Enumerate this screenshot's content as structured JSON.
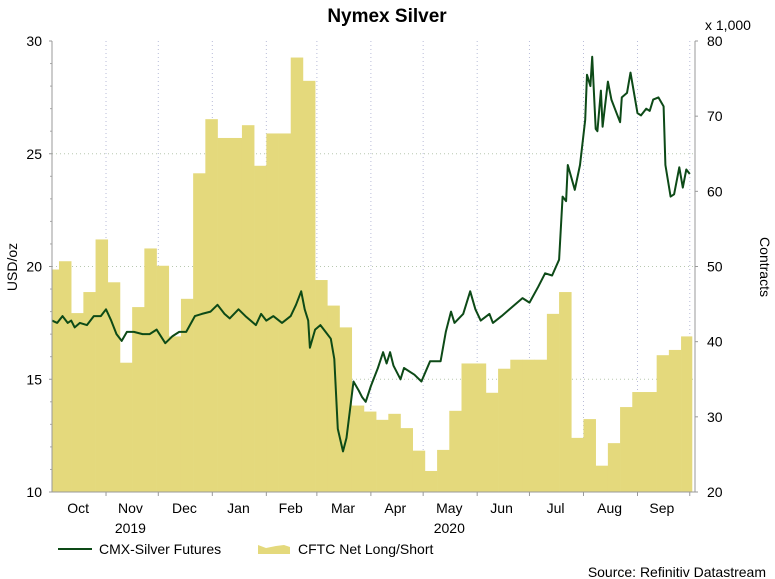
{
  "chart_data": {
    "type": "line+area",
    "title": "Nymex Silver",
    "ylabel_left": "USD/oz",
    "ylabel_right": "Contracts",
    "right_multiplier": "x 1,000",
    "source": "Source: Refinitiv Datastream",
    "xlim": [
      "2019-10-01",
      "2020-10-04"
    ],
    "ylim_left": [
      10,
      30
    ],
    "ylim_right": [
      20,
      80
    ],
    "yticks_left": [
      "10",
      "15",
      "20",
      "25",
      "30"
    ],
    "yticks_right": [
      "20",
      "30",
      "40",
      "50",
      "60",
      "70",
      "80"
    ],
    "grid": true,
    "months": [
      {
        "label": "Oct",
        "date": "2019-10-16"
      },
      {
        "label": "Nov",
        "date": "2019-11-15"
      },
      {
        "label": "Dec",
        "date": "2019-12-16"
      },
      {
        "label": "Jan",
        "date": "2020-01-16"
      },
      {
        "label": "Feb",
        "date": "2020-02-15"
      },
      {
        "label": "Mar",
        "date": "2020-03-16"
      },
      {
        "label": "Apr",
        "date": "2020-04-15"
      },
      {
        "label": "May",
        "date": "2020-05-16"
      },
      {
        "label": "Jun",
        "date": "2020-06-15"
      },
      {
        "label": "Jul",
        "date": "2020-07-16"
      },
      {
        "label": "Aug",
        "date": "2020-08-16"
      },
      {
        "label": "Sep",
        "date": "2020-09-15"
      }
    ],
    "month_boundaries": [
      "2019-11-01",
      "2019-12-01",
      "2020-01-01",
      "2020-02-01",
      "2020-03-01",
      "2020-04-01",
      "2020-05-01",
      "2020-06-01",
      "2020-07-01",
      "2020-08-01",
      "2020-09-01",
      "2020-10-01"
    ],
    "years": [
      {
        "label": "2019",
        "date": "2019-11-15"
      },
      {
        "label": "2020",
        "date": "2020-05-16"
      }
    ],
    "legend_placement": "bottom-left",
    "series": [
      {
        "name": "CMX-Silver Futures",
        "axis": "left",
        "kind": "line",
        "color": "#0d4a17",
        "points": [
          [
            "2019-10-01",
            17.6
          ],
          [
            "2019-10-04",
            17.5
          ],
          [
            "2019-10-07",
            17.8
          ],
          [
            "2019-10-10",
            17.5
          ],
          [
            "2019-10-12",
            17.6
          ],
          [
            "2019-10-14",
            17.3
          ],
          [
            "2019-10-17",
            17.5
          ],
          [
            "2019-10-21",
            17.4
          ],
          [
            "2019-10-25",
            17.8
          ],
          [
            "2019-10-29",
            17.8
          ],
          [
            "2019-11-01",
            18.1
          ],
          [
            "2019-11-04",
            17.6
          ],
          [
            "2019-11-07",
            17.0
          ],
          [
            "2019-11-10",
            16.7
          ],
          [
            "2019-11-13",
            17.1
          ],
          [
            "2019-11-17",
            17.1
          ],
          [
            "2019-11-22",
            17.0
          ],
          [
            "2019-11-26",
            17.0
          ],
          [
            "2019-11-30",
            17.2
          ],
          [
            "2019-12-05",
            16.6
          ],
          [
            "2019-12-09",
            16.9
          ],
          [
            "2019-12-13",
            17.1
          ],
          [
            "2019-12-17",
            17.1
          ],
          [
            "2019-12-22",
            17.8
          ],
          [
            "2019-12-26",
            17.9
          ],
          [
            "2019-12-31",
            18.0
          ],
          [
            "2020-01-04",
            18.3
          ],
          [
            "2020-01-08",
            17.9
          ],
          [
            "2020-01-11",
            17.7
          ],
          [
            "2020-01-16",
            18.1
          ],
          [
            "2020-01-20",
            17.8
          ],
          [
            "2020-01-26",
            17.4
          ],
          [
            "2020-01-29",
            17.9
          ],
          [
            "2020-02-01",
            17.6
          ],
          [
            "2020-02-05",
            17.8
          ],
          [
            "2020-02-10",
            17.5
          ],
          [
            "2020-02-15",
            17.8
          ],
          [
            "2020-02-18",
            18.3
          ],
          [
            "2020-02-21",
            18.9
          ],
          [
            "2020-02-23",
            18.1
          ],
          [
            "2020-02-25",
            17.6
          ],
          [
            "2020-02-26",
            16.4
          ],
          [
            "2020-02-29",
            17.2
          ],
          [
            "2020-03-03",
            17.4
          ],
          [
            "2020-03-06",
            17.1
          ],
          [
            "2020-03-09",
            16.8
          ],
          [
            "2020-03-11",
            15.9
          ],
          [
            "2020-03-13",
            12.8
          ],
          [
            "2020-03-16",
            11.8
          ],
          [
            "2020-03-18",
            12.4
          ],
          [
            "2020-03-22",
            14.9
          ],
          [
            "2020-03-25",
            14.5
          ],
          [
            "2020-03-27",
            14.2
          ],
          [
            "2020-03-29",
            14.0
          ],
          [
            "2020-04-01",
            14.7
          ],
          [
            "2020-04-05",
            15.5
          ],
          [
            "2020-04-08",
            16.2
          ],
          [
            "2020-04-10",
            15.7
          ],
          [
            "2020-04-12",
            16.2
          ],
          [
            "2020-04-14",
            15.6
          ],
          [
            "2020-04-18",
            15.0
          ],
          [
            "2020-04-20",
            15.5
          ],
          [
            "2020-04-26",
            15.2
          ],
          [
            "2020-04-30",
            14.9
          ],
          [
            "2020-05-05",
            15.8
          ],
          [
            "2020-05-11",
            15.8
          ],
          [
            "2020-05-14",
            17.1
          ],
          [
            "2020-05-17",
            18.0
          ],
          [
            "2020-05-19",
            17.5
          ],
          [
            "2020-05-24",
            17.9
          ],
          [
            "2020-05-28",
            18.9
          ],
          [
            "2020-05-31",
            18.1
          ],
          [
            "2020-06-03",
            17.6
          ],
          [
            "2020-06-08",
            17.9
          ],
          [
            "2020-06-10",
            17.5
          ],
          [
            "2020-06-15",
            17.8
          ],
          [
            "2020-06-21",
            18.2
          ],
          [
            "2020-06-27",
            18.6
          ],
          [
            "2020-07-01",
            18.4
          ],
          [
            "2020-07-06",
            19.1
          ],
          [
            "2020-07-10",
            19.7
          ],
          [
            "2020-07-14",
            19.6
          ],
          [
            "2020-07-18",
            20.3
          ],
          [
            "2020-07-20",
            23.1
          ],
          [
            "2020-07-22",
            22.9
          ],
          [
            "2020-07-23",
            24.5
          ],
          [
            "2020-07-27",
            23.4
          ],
          [
            "2020-07-30",
            24.5
          ],
          [
            "2020-08-02",
            26.5
          ],
          [
            "2020-08-03",
            28.5
          ],
          [
            "2020-08-05",
            28.0
          ],
          [
            "2020-08-06",
            29.3
          ],
          [
            "2020-08-08",
            26.1
          ],
          [
            "2020-08-09",
            26.0
          ],
          [
            "2020-08-11",
            27.8
          ],
          [
            "2020-08-12",
            26.2
          ],
          [
            "2020-08-15",
            28.2
          ],
          [
            "2020-08-17",
            27.4
          ],
          [
            "2020-08-20",
            26.8
          ],
          [
            "2020-08-22",
            26.4
          ],
          [
            "2020-08-23",
            27.5
          ],
          [
            "2020-08-26",
            27.7
          ],
          [
            "2020-08-28",
            28.6
          ],
          [
            "2020-09-01",
            26.8
          ],
          [
            "2020-09-03",
            26.7
          ],
          [
            "2020-09-06",
            27.0
          ],
          [
            "2020-09-08",
            26.9
          ],
          [
            "2020-09-10",
            27.4
          ],
          [
            "2020-09-13",
            27.5
          ],
          [
            "2020-09-16",
            27.1
          ],
          [
            "2020-09-17",
            24.5
          ],
          [
            "2020-09-20",
            23.1
          ],
          [
            "2020-09-22",
            23.2
          ],
          [
            "2020-09-25",
            24.4
          ],
          [
            "2020-09-27",
            23.5
          ],
          [
            "2020-09-29",
            24.3
          ],
          [
            "2020-10-01",
            24.1
          ]
        ]
      },
      {
        "name": "CFTC Net Long/Short",
        "axis": "right",
        "kind": "step-area",
        "unit": "thousand contracts",
        "color": "#e4d97c",
        "week_start": "2019-09-28",
        "weekly_values": [
          49.6,
          50.7,
          43.8,
          46.6,
          53.6,
          47.9,
          37.2,
          44.6,
          52.4,
          50.1,
          40.7,
          45.7,
          62.4,
          69.6,
          67.1,
          67.1,
          68.8,
          63.4,
          67.7,
          67.7,
          77.8,
          74.7,
          48.2,
          44.8,
          41.9,
          31.5,
          30.7,
          29.6,
          30.4,
          28.5,
          25.5,
          22.8,
          25.6,
          30.8,
          37.1,
          37.1,
          33.2,
          36.4,
          37.6,
          37.6,
          37.6,
          43.7,
          46.6,
          27.2,
          29.7,
          23.5,
          26.5,
          31.3,
          33.3,
          33.3,
          38.2,
          38.9,
          40.7
        ]
      }
    ]
  }
}
